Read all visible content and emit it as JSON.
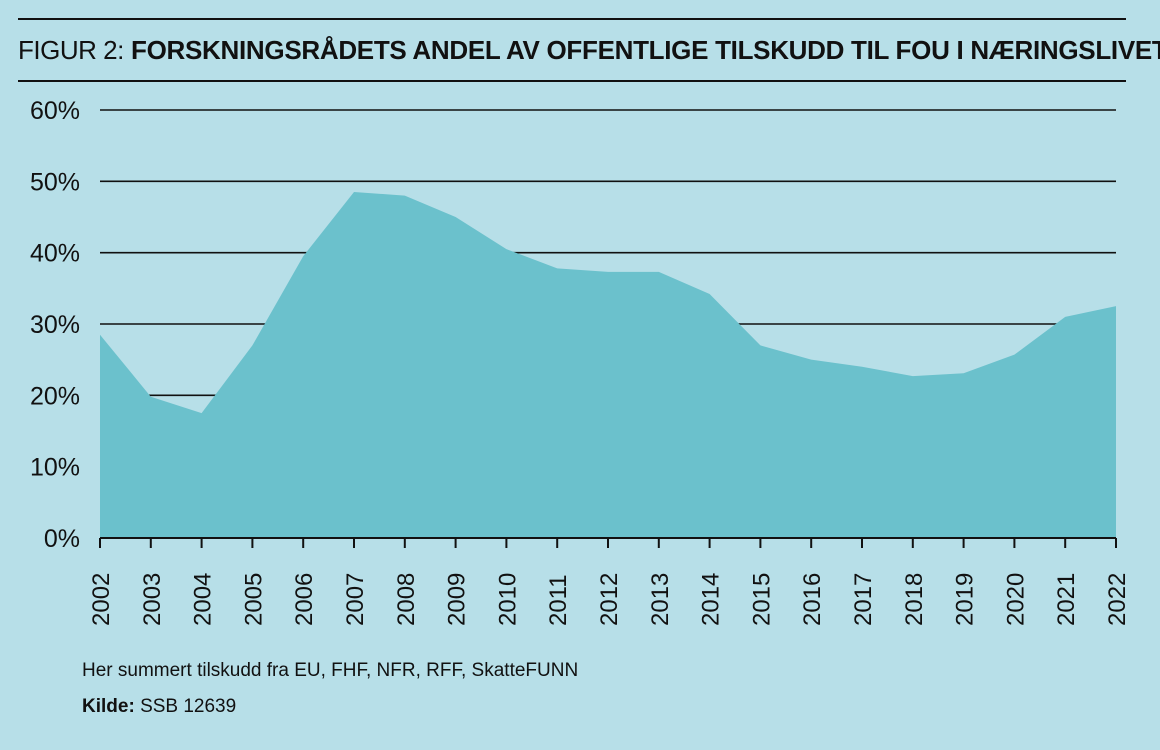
{
  "figure": {
    "prefix": "FIGUR 2:",
    "title": "FORSKNINGSRÅDETS ANDEL AV OFFENTLIGE TILSKUDD TIL FOU I NÆRINGSLIVET"
  },
  "notes": {
    "summary": "Her summert tilskudd fra EU, FHF, NFR, RFF, SkatteFUNN",
    "source_label": "Kilde:",
    "source_value": "SSB 12639"
  },
  "colors": {
    "background": "#b7dfe8",
    "area_fill": "#6bc1cc",
    "gridline": "#111111"
  },
  "chart_data": {
    "type": "area",
    "title": "",
    "xlabel": "",
    "ylabel": "",
    "x": [
      "2002",
      "2003",
      "2004",
      "2005",
      "2006",
      "2007",
      "2008",
      "2009",
      "2010",
      "2011",
      "2012",
      "2013",
      "2014",
      "2015",
      "2016",
      "2017",
      "2018",
      "2019",
      "2020",
      "2021",
      "2022"
    ],
    "series": [
      {
        "values": [
          28.5,
          19.8,
          17.5,
          27,
          39.5,
          48.5,
          48,
          45,
          40.5,
          37.8,
          37.3,
          37.3,
          34.2,
          27,
          25,
          24,
          22.7,
          23.1,
          25.7,
          31,
          32.5
        ]
      }
    ],
    "ylim": [
      0,
      60
    ],
    "yticks": [
      0,
      10,
      20,
      30,
      40,
      50,
      60
    ],
    "ytick_labels": [
      "0%",
      "10%",
      "20%",
      "30%",
      "40%",
      "50%",
      "60%"
    ],
    "grid": true,
    "legend": "none"
  }
}
